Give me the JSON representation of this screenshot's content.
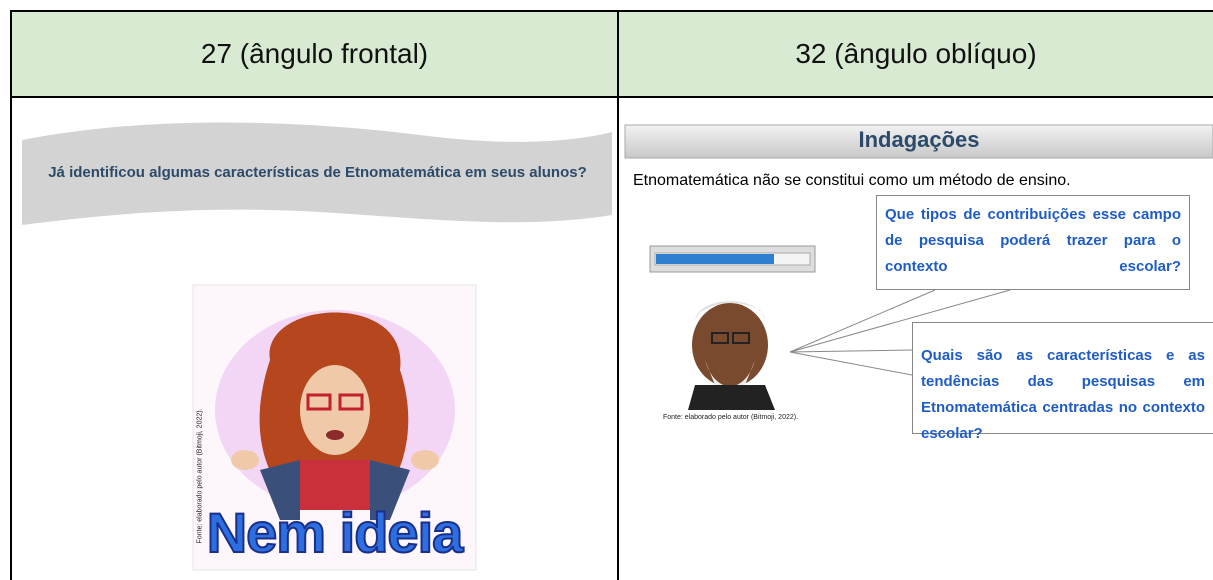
{
  "header": {
    "cells": [
      "27 (ângulo frontal)",
      "32 (ângulo oblíquo)"
    ]
  },
  "left": {
    "question": "Já identificou algumas características de Etnomatemática em seus alunos?",
    "image_text": "Nem ideia",
    "source": "Fonte: elaborado pelo autor  (Bitmoji, 2022)."
  },
  "right": {
    "title": "Indagações",
    "statement": "Etnomatemática não se constitui como um método de ensino.",
    "questions": [
      "Que tipos de contribuições esse campo de pesquisa poderá trazer para o contexto escolar?",
      "Quais são as características e as tendências das pesquisas em Etnomatemática centradas no contexto escolar?"
    ],
    "source": "Fonte: elaborado pelo autor  (Bitmoji, 2022)."
  }
}
